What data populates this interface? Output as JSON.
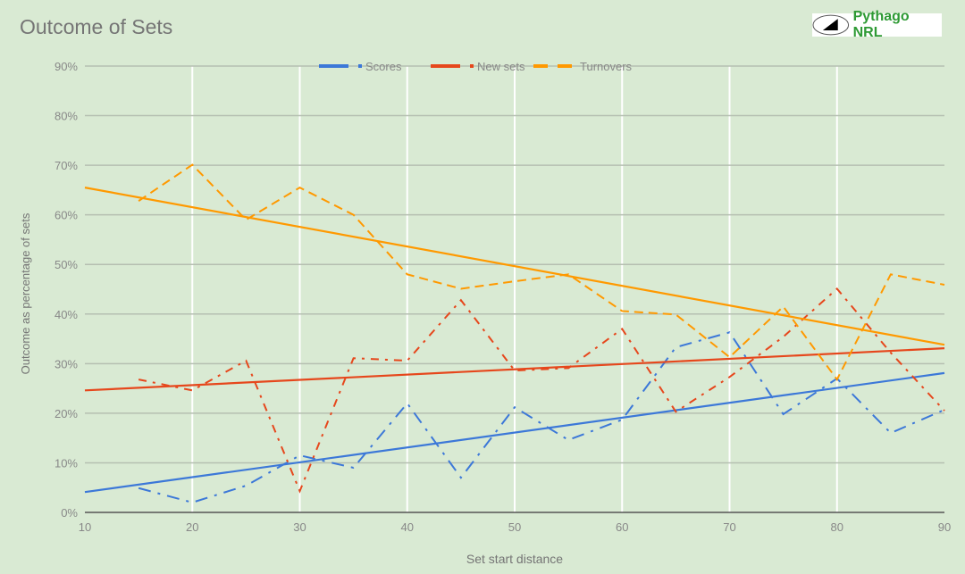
{
  "chart_data": {
    "type": "line",
    "title": "Outcome of Sets",
    "xlabel": "Set start distance",
    "ylabel": "Outcome as percentage of sets",
    "xlim": [
      10,
      90
    ],
    "ylim": [
      0,
      90
    ],
    "x_ticks": [
      10,
      20,
      30,
      40,
      50,
      60,
      70,
      80,
      90
    ],
    "y_ticks": [
      "0%",
      "10%",
      "20%",
      "30%",
      "40%",
      "50%",
      "60%",
      "70%",
      "80%",
      "90%"
    ],
    "grid": true,
    "legend_position": "top",
    "x": [
      15,
      20,
      25,
      30,
      35,
      40,
      45,
      50,
      55,
      60,
      65,
      70,
      75,
      80,
      85,
      90
    ],
    "series": [
      {
        "name": "Scores",
        "color": "#3c78d8",
        "style": "dash-dot",
        "values": [
          4.9,
          2.0,
          5.4,
          11.5,
          9.0,
          22.0,
          7.0,
          21.2,
          14.6,
          18.7,
          33.3,
          36.3,
          19.8,
          27.0,
          16.0,
          20.7
        ],
        "trendline": [
          [
            10,
            4.1
          ],
          [
            90,
            28.1
          ]
        ]
      },
      {
        "name": "New sets",
        "color": "#e6471c",
        "style": "dash-dot",
        "values": [
          26.8,
          24.6,
          30.6,
          4.3,
          31.1,
          30.6,
          42.8,
          28.6,
          29.1,
          37.0,
          20.3,
          27.3,
          35.4,
          45.1,
          32.2,
          20.5
        ],
        "trendline": [
          [
            10,
            24.6
          ],
          [
            90,
            33.1
          ]
        ]
      },
      {
        "name": "Turnovers",
        "color": "#ff9900",
        "style": "dashed",
        "values": [
          62.8,
          70.1,
          59.0,
          65.5,
          60.0,
          48.0,
          45.1,
          46.6,
          48.0,
          40.6,
          39.9,
          31.3,
          41.5,
          26.8,
          48.0,
          45.9
        ],
        "trendline": [
          [
            10,
            65.5
          ],
          [
            90,
            33.8
          ]
        ]
      }
    ]
  },
  "logo": {
    "text": "Pythago NRL"
  }
}
